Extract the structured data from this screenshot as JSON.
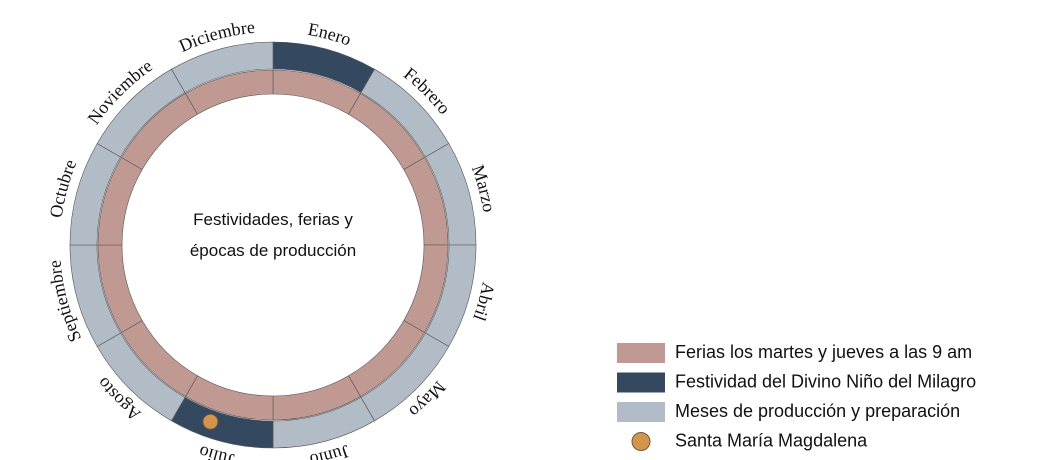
{
  "diagram": {
    "center_text": [
      "Festividades, ferias y",
      "épocas de producción"
    ],
    "months": [
      {
        "label": "Enero",
        "color": "#34495f"
      },
      {
        "label": "Febrero",
        "color": "#b1bcc6"
      },
      {
        "label": "Marzo",
        "color": "#b1bcc6"
      },
      {
        "label": "Abril",
        "color": "#b1bcc6"
      },
      {
        "label": "Mayo",
        "color": "#b1bcc6"
      },
      {
        "label": "Junio",
        "color": "#b1bcc6"
      },
      {
        "label": "Julio",
        "color": "#34495f"
      },
      {
        "label": "Agosto",
        "color": "#b1bcc6"
      },
      {
        "label": "Septiembre",
        "color": "#b1bcc6"
      },
      {
        "label": "Octubre",
        "color": "#b1bcc6"
      },
      {
        "label": "Noviembre",
        "color": "#b1bcc6"
      },
      {
        "label": "Diciembre",
        "color": "#b1bcc6"
      }
    ],
    "inner_ring_color": "#c09a92",
    "legend": [
      {
        "label": "Ferias los martes y jueves a las 9 am",
        "color": "#c09a92",
        "shape": "rect"
      },
      {
        "label": "Festividad del Divino Niño del Milagro",
        "color": "#34495f",
        "shape": "rect"
      },
      {
        "label": "Meses de producción y preparación",
        "color": "#b1bcc6",
        "shape": "rect"
      },
      {
        "label": "Santa María Magdalena",
        "color": "#d4954a",
        "shape": "circle"
      }
    ]
  }
}
